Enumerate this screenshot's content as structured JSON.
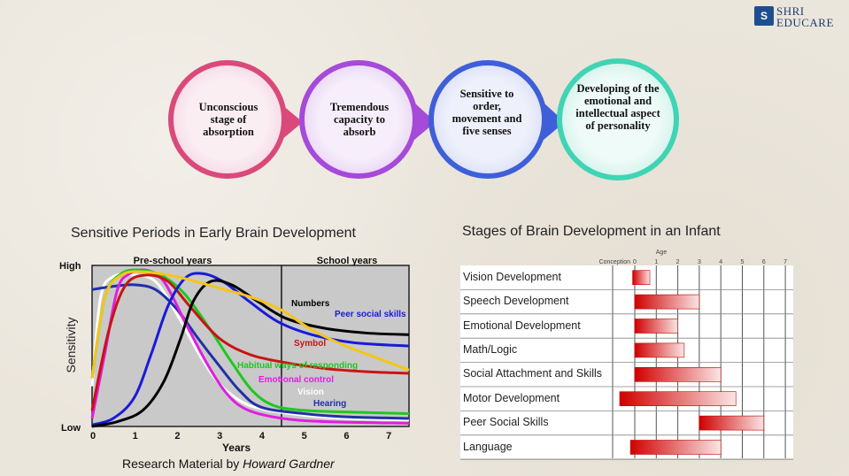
{
  "logo": {
    "line1": "SHRI",
    "line2": "EDUCARE"
  },
  "stages": [
    {
      "text": "Unconscious stage of absorption",
      "color": "#d94a7b"
    },
    {
      "text": "Tremendous capacity to absorb",
      "color": "#a64ad9"
    },
    {
      "text": "Sensitive to order, movement and five senses",
      "color": "#3f5fd9"
    },
    {
      "text": "Developing of the emotional and intellectual aspect of personality",
      "color": "#3fd4b4"
    }
  ],
  "left_chart": {
    "title": "Sensitive Periods in Early Brain Development",
    "section_labels": [
      "Pre-school years",
      "School years"
    ],
    "y_label": "Sensitivity",
    "y_high": "High",
    "y_low": "Low",
    "x_label": "Years",
    "x_ticks": [
      "0",
      "1",
      "2",
      "3",
      "4",
      "5",
      "6",
      "7"
    ],
    "curve_labels": [
      {
        "text": "Numbers",
        "color": "#000000"
      },
      {
        "text": "Peer social skills",
        "color": "#1a1ad9"
      },
      {
        "text": "Symbol",
        "color": "#c81414"
      },
      {
        "text": "Habitual ways of responding",
        "color": "#1ec81e"
      },
      {
        "text": "Emotional control",
        "color": "#e01ee0"
      },
      {
        "text": "Vision",
        "color": "#ffffff"
      },
      {
        "text": "Hearing",
        "color": "#2030a8"
      }
    ],
    "caption_prefix": "Research Material by ",
    "caption_author": "Howard Gardner"
  },
  "chart_data": {
    "type": "line",
    "x_range": [
      0,
      7.5
    ],
    "y_range": [
      0,
      1
    ],
    "xlabel": "Years",
    "ylabel": "Sensitivity",
    "series": [
      {
        "name": "Vision",
        "color": "#ffffff",
        "points": [
          [
            0,
            0.25
          ],
          [
            0.2,
            0.8
          ],
          [
            0.5,
            0.93
          ],
          [
            1,
            0.94
          ],
          [
            1.5,
            0.9
          ],
          [
            2,
            0.7
          ],
          [
            2.6,
            0.42
          ],
          [
            3,
            0.27
          ],
          [
            3.5,
            0.16
          ],
          [
            4,
            0.11
          ],
          [
            5,
            0.07
          ],
          [
            6,
            0.05
          ],
          [
            7.5,
            0.04
          ]
        ]
      },
      {
        "name": "Hearing",
        "color": "#2030a8",
        "points": [
          [
            0,
            0.85
          ],
          [
            0.5,
            0.87
          ],
          [
            1,
            0.88
          ],
          [
            1.5,
            0.85
          ],
          [
            2,
            0.73
          ],
          [
            2.5,
            0.55
          ],
          [
            3,
            0.38
          ],
          [
            3.5,
            0.22
          ],
          [
            4,
            0.12
          ],
          [
            5,
            0.08
          ],
          [
            6,
            0.06
          ],
          [
            7.5,
            0.05
          ]
        ]
      },
      {
        "name": "Emotional control",
        "color": "#e01ee0",
        "points": [
          [
            0,
            0.05
          ],
          [
            0.3,
            0.45
          ],
          [
            0.6,
            0.85
          ],
          [
            0.9,
            0.95
          ],
          [
            1.3,
            0.97
          ],
          [
            1.7,
            0.9
          ],
          [
            2.2,
            0.65
          ],
          [
            2.7,
            0.4
          ],
          [
            3.2,
            0.2
          ],
          [
            3.7,
            0.1
          ],
          [
            4.5,
            0.05
          ],
          [
            5.5,
            0.03
          ],
          [
            7.5,
            0.02
          ]
        ]
      },
      {
        "name": "Habitual ways of responding",
        "color": "#1ec81e",
        "points": [
          [
            0,
            0.3
          ],
          [
            0.3,
            0.8
          ],
          [
            0.7,
            0.95
          ],
          [
            1.2,
            0.97
          ],
          [
            1.7,
            0.93
          ],
          [
            2.2,
            0.82
          ],
          [
            2.8,
            0.6
          ],
          [
            3.3,
            0.4
          ],
          [
            3.8,
            0.22
          ],
          [
            4.3,
            0.13
          ],
          [
            5,
            0.1
          ],
          [
            6,
            0.09
          ],
          [
            7.5,
            0.08
          ]
        ]
      },
      {
        "name": "Symbol",
        "color": "#c81414",
        "points": [
          [
            0,
            0.1
          ],
          [
            0.4,
            0.6
          ],
          [
            0.8,
            0.88
          ],
          [
            1.3,
            0.94
          ],
          [
            1.8,
            0.9
          ],
          [
            2.3,
            0.75
          ],
          [
            3,
            0.55
          ],
          [
            3.7,
            0.45
          ],
          [
            4.5,
            0.4
          ],
          [
            5.5,
            0.36
          ],
          [
            6.5,
            0.34
          ],
          [
            7.5,
            0.33
          ]
        ]
      },
      {
        "name": "Peer social skills",
        "color": "#1a1ad9",
        "points": [
          [
            0,
            0.01
          ],
          [
            0.5,
            0.05
          ],
          [
            1,
            0.18
          ],
          [
            1.4,
            0.45
          ],
          [
            1.8,
            0.75
          ],
          [
            2.2,
            0.92
          ],
          [
            2.6,
            0.95
          ],
          [
            3.1,
            0.9
          ],
          [
            3.7,
            0.78
          ],
          [
            4.4,
            0.65
          ],
          [
            5.2,
            0.57
          ],
          [
            6.2,
            0.52
          ],
          [
            7.5,
            0.5
          ]
        ]
      },
      {
        "name": "Numbers",
        "color": "#000000",
        "points": [
          [
            0,
            0.0
          ],
          [
            0.6,
            0.03
          ],
          [
            1.2,
            0.1
          ],
          [
            1.7,
            0.28
          ],
          [
            2.1,
            0.55
          ],
          [
            2.4,
            0.78
          ],
          [
            2.8,
            0.9
          ],
          [
            3.3,
            0.88
          ],
          [
            3.9,
            0.78
          ],
          [
            4.6,
            0.67
          ],
          [
            5.5,
            0.61
          ],
          [
            6.5,
            0.58
          ],
          [
            7.5,
            0.57
          ]
        ]
      },
      {
        "name": "",
        "color": "#f5c518",
        "points": [
          [
            0,
            0.3
          ],
          [
            0.3,
            0.8
          ],
          [
            0.7,
            0.94
          ],
          [
            1.2,
            0.96
          ],
          [
            2,
            0.93
          ],
          [
            3,
            0.86
          ],
          [
            3.8,
            0.8
          ],
          [
            4.5,
            0.72
          ],
          [
            5.2,
            0.6
          ],
          [
            6,
            0.5
          ],
          [
            6.8,
            0.42
          ],
          [
            7.5,
            0.35
          ]
        ]
      }
    ]
  },
  "right_chart": {
    "title": "Stages of Brain Development in an Infant",
    "age_label": "Age",
    "conception_label": "Conception",
    "age_ticks": [
      "0",
      "1",
      "2",
      "3",
      "4",
      "5",
      "6",
      "7"
    ],
    "rows": [
      {
        "label": "Vision Development",
        "start": -0.1,
        "end": 0.7
      },
      {
        "label": "Speech Development",
        "start": 0,
        "end": 3
      },
      {
        "label": "Emotional Development",
        "start": 0,
        "end": 2
      },
      {
        "label": "Math/Logic",
        "start": 0,
        "end": 2.3
      },
      {
        "label": "Social Attachment and Skills",
        "start": 0,
        "end": 4
      },
      {
        "label": "Motor Development",
        "start": -0.7,
        "end": 4.7
      },
      {
        "label": "Peer Social Skills",
        "start": 3,
        "end": 6
      },
      {
        "label": "Language",
        "start": -0.2,
        "end": 4
      }
    ]
  }
}
